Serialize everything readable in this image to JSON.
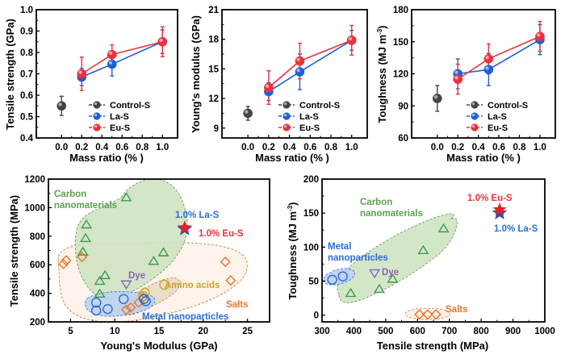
{
  "colors": {
    "control": "#444444",
    "la": "#1f5fd6",
    "eu": "#e8323c",
    "carbon": "#3e9a4e",
    "carbon_fill": "#cfe3c2",
    "metal": "#2f68d8",
    "metal_fill": "#bcd2f0",
    "salts": "#e8742a",
    "salts_fill": "#fbefe4",
    "amino": "#c9a52a",
    "amino_fill": "#e6dcc8",
    "dye": "#8a63b5",
    "star_eu": "#ee1c25",
    "star_la": "#2b4fb8"
  },
  "chart_data": [
    {
      "id": "tensile",
      "type": "line",
      "title": "",
      "xlabel": "Mass ratio (% )",
      "ylabel": "Tensile strength (GPa)",
      "xlim": [
        -0.25,
        1.15
      ],
      "ylim": [
        0.4,
        1.0
      ],
      "xticks": [
        0.0,
        0.2,
        0.4,
        0.6,
        0.8,
        1.0
      ],
      "xtick_labels": [
        "0.0",
        "0.2",
        "0.4",
        "0.6",
        "0.8",
        "1.0"
      ],
      "yticks": [
        0.4,
        0.5,
        0.6,
        0.7,
        0.8,
        0.9,
        1.0
      ],
      "ytick_labels": [
        "0.4",
        "0.5",
        "0.6",
        "0.7",
        "0.8",
        "0.9",
        "1.0"
      ],
      "legend_position": "bottom-right",
      "series": [
        {
          "name": "Control-S",
          "key": "control",
          "x": [
            0.0
          ],
          "y": [
            0.55
          ],
          "err": [
            0.045
          ]
        },
        {
          "name": "La-S",
          "key": "la",
          "x": [
            0.2,
            0.5,
            1.0
          ],
          "y": [
            0.685,
            0.745,
            0.85
          ],
          "err": [
            0.04,
            0.055,
            0.055
          ]
        },
        {
          "name": "Eu-S",
          "key": "eu",
          "x": [
            0.2,
            0.5,
            1.0
          ],
          "y": [
            0.7,
            0.79,
            0.85
          ],
          "err": [
            0.078,
            0.045,
            0.07
          ]
        }
      ]
    },
    {
      "id": "modulus",
      "type": "line",
      "title": "",
      "xlabel": "Mass ratio (% )",
      "ylabel": "Young's modulus (GPa)",
      "xlim": [
        -0.25,
        1.15
      ],
      "ylim": [
        8,
        21
      ],
      "xticks": [
        0.0,
        0.2,
        0.4,
        0.6,
        0.8,
        1.0
      ],
      "xtick_labels": [
        "0.0",
        "0.2",
        "0.4",
        "0.6",
        "0.8",
        "1.0"
      ],
      "yticks": [
        9,
        12,
        15,
        18,
        21
      ],
      "ytick_labels": [
        "9",
        "12",
        "15",
        "18",
        "21"
      ],
      "legend_position": "bottom-right",
      "series": [
        {
          "name": "Control-S",
          "key": "control",
          "x": [
            0.0
          ],
          "y": [
            10.5
          ],
          "err": [
            0.7
          ]
        },
        {
          "name": "La-S",
          "key": "la",
          "x": [
            0.2,
            0.5,
            1.0
          ],
          "y": [
            12.7,
            14.7,
            17.9
          ],
          "err": [
            0.9,
            1.8,
            1.0
          ]
        },
        {
          "name": "Eu-S",
          "key": "eu",
          "x": [
            0.2,
            0.5,
            1.0
          ],
          "y": [
            13.1,
            15.8,
            17.9
          ],
          "err": [
            1.7,
            1.8,
            1.5
          ]
        }
      ]
    },
    {
      "id": "toughness",
      "type": "line",
      "title": "",
      "xlabel": "Mass ratio (% )",
      "ylabel": "Toughness (MJ m",
      "ylabel_sup": "-3",
      "ylabel_end": ")",
      "xlim": [
        -0.25,
        1.15
      ],
      "ylim": [
        60,
        180
      ],
      "xticks": [
        0.0,
        0.2,
        0.4,
        0.6,
        0.8,
        1.0
      ],
      "xtick_labels": [
        "0.0",
        "0.2",
        "0.4",
        "0.6",
        "0.8",
        "1.0"
      ],
      "yticks": [
        60,
        90,
        120,
        150,
        180
      ],
      "ytick_labels": [
        "60",
        "90",
        "120",
        "150",
        "180"
      ],
      "legend_position": "bottom-right",
      "series": [
        {
          "name": "Control-S",
          "key": "control",
          "x": [
            0.0
          ],
          "y": [
            97
          ],
          "err": [
            12
          ]
        },
        {
          "name": "La-S",
          "key": "la",
          "x": [
            0.2,
            0.5,
            1.0
          ],
          "y": [
            120,
            124,
            152
          ],
          "err": [
            14,
            15,
            14
          ]
        },
        {
          "name": "Eu-S",
          "key": "eu",
          "x": [
            0.2,
            0.5,
            1.0
          ],
          "y": [
            115,
            134,
            155
          ],
          "err": [
            14,
            14,
            14
          ]
        }
      ]
    },
    {
      "id": "ashby-modulus",
      "type": "scatter",
      "title": "",
      "xlabel": "Young's Modulus (GPa)",
      "ylabel": "Tensile strength (MPa)",
      "xlim": [
        2.5,
        27.5
      ],
      "ylim": [
        200,
        1200
      ],
      "xticks": [
        5,
        10,
        15,
        20,
        25
      ],
      "xtick_labels": [
        "5",
        "10",
        "15",
        "20",
        "25"
      ],
      "yticks": [
        200,
        400,
        600,
        800,
        1000,
        1200
      ],
      "ytick_labels": [
        "200",
        "400",
        "600",
        "800",
        "1000",
        "1200"
      ],
      "groups": [
        {
          "name": "Carbon nanomaterials",
          "key": "carbon",
          "marker": "triangle-up",
          "points": [
            [
              11.3,
              1070
            ],
            [
              6.8,
              880
            ],
            [
              6.7,
              785
            ],
            [
              6.4,
              690
            ],
            [
              15.5,
              685
            ],
            [
              14.4,
              625
            ],
            [
              8.9,
              525
            ],
            [
              8.3,
              485
            ],
            [
              8.3,
              395
            ]
          ]
        },
        {
          "name": "Salts",
          "key": "salts",
          "marker": "diamond",
          "points": [
            [
              4.5,
              630
            ],
            [
              4.2,
              605
            ],
            [
              6.3,
              655
            ],
            [
              22.5,
              620
            ],
            [
              23.1,
              490
            ],
            [
              11.3,
              285
            ],
            [
              11.8,
              300
            ],
            [
              12.7,
              335
            ],
            [
              13.2,
              370
            ]
          ]
        },
        {
          "name": "Amino acids",
          "key": "amino",
          "marker": "circle",
          "points": [
            [
              15.6,
              460
            ],
            [
              13.4,
              405
            ],
            [
              13.2,
              380
            ]
          ]
        },
        {
          "name": "Metal nanoparticles",
          "key": "metal",
          "marker": "circle",
          "points": [
            [
              7.9,
              335
            ],
            [
              7.9,
              280
            ],
            [
              9.2,
              290
            ],
            [
              11.0,
              360
            ],
            [
              13.5,
              345
            ],
            [
              13.3,
              360
            ]
          ]
        },
        {
          "name": "Dye",
          "key": "dye",
          "marker": "triangle-down",
          "points": [
            [
              11.3,
              465
            ]
          ]
        }
      ],
      "highlights": [
        {
          "name": "1.0% La-S",
          "key": "la",
          "x": 17.9,
          "y": 860
        },
        {
          "name": "1.0% Eu-S",
          "key": "eu",
          "x": 17.9,
          "y": 860
        }
      ],
      "annotations": [
        "Carbon nanomaterials",
        "Dye",
        "Amino acids",
        "Salts",
        "Metal nanoparticles",
        "1.0% La-S",
        "1.0% Eu-S"
      ]
    },
    {
      "id": "ashby-toughness",
      "type": "scatter",
      "title": "",
      "xlabel": "Tensile strength (MPa)",
      "ylabel": "Toughness (MJ m",
      "ylabel_sup": "-3",
      "ylabel_end": ")",
      "xlim": [
        300,
        1000
      ],
      "ylim": [
        -10,
        200
      ],
      "xticks": [
        300,
        400,
        500,
        600,
        700,
        800,
        900,
        1000
      ],
      "xtick_labels": [
        "300",
        "400",
        "500",
        "600",
        "700",
        "800",
        "900",
        "1000"
      ],
      "yticks": [
        0,
        50,
        100,
        150,
        200
      ],
      "ytick_labels": [
        "0",
        "50",
        "100",
        "150",
        "200"
      ],
      "groups": [
        {
          "name": "Carbon nanomaterials",
          "key": "carbon",
          "marker": "triangle-up",
          "points": [
            [
              390,
              32
            ],
            [
              480,
              38
            ],
            [
              522,
              53
            ],
            [
              618,
              95
            ],
            [
              682,
              127
            ]
          ]
        },
        {
          "name": "Metal nanoparticles",
          "key": "metal",
          "marker": "circle",
          "points": [
            [
              332,
              52
            ],
            [
              365,
              57
            ]
          ]
        },
        {
          "name": "Dye",
          "key": "dye",
          "marker": "triangle-down",
          "points": [
            [
              465,
              62
            ]
          ]
        },
        {
          "name": "Salts",
          "key": "salts",
          "marker": "diamond",
          "points": [
            [
              606,
              1
            ],
            [
              632,
              1
            ],
            [
              658,
              1
            ]
          ]
        }
      ],
      "highlights": [
        {
          "name": "1.0% La-S",
          "key": "la",
          "x": 858,
          "y": 152
        },
        {
          "name": "1.0% Eu-S",
          "key": "eu",
          "x": 858,
          "y": 155
        }
      ],
      "annotations": [
        "Carbon nanomaterials",
        "Metal nanoparticles",
        "Dye",
        "Salts",
        "1.0% Eu-S",
        "1.0% La-S"
      ]
    }
  ],
  "labels": {
    "carbon_line1": "Carbon",
    "carbon_line2": "nanomaterials",
    "metal_full": "Metal nanoparticles",
    "metal_line1": "Metal",
    "metal_line2": "nanoparticles",
    "dye": "Dye",
    "amino": "Amino acids",
    "salts": "Salts",
    "la_highlight": "1.0% La-S",
    "eu_highlight": "1.0% Eu-S"
  }
}
